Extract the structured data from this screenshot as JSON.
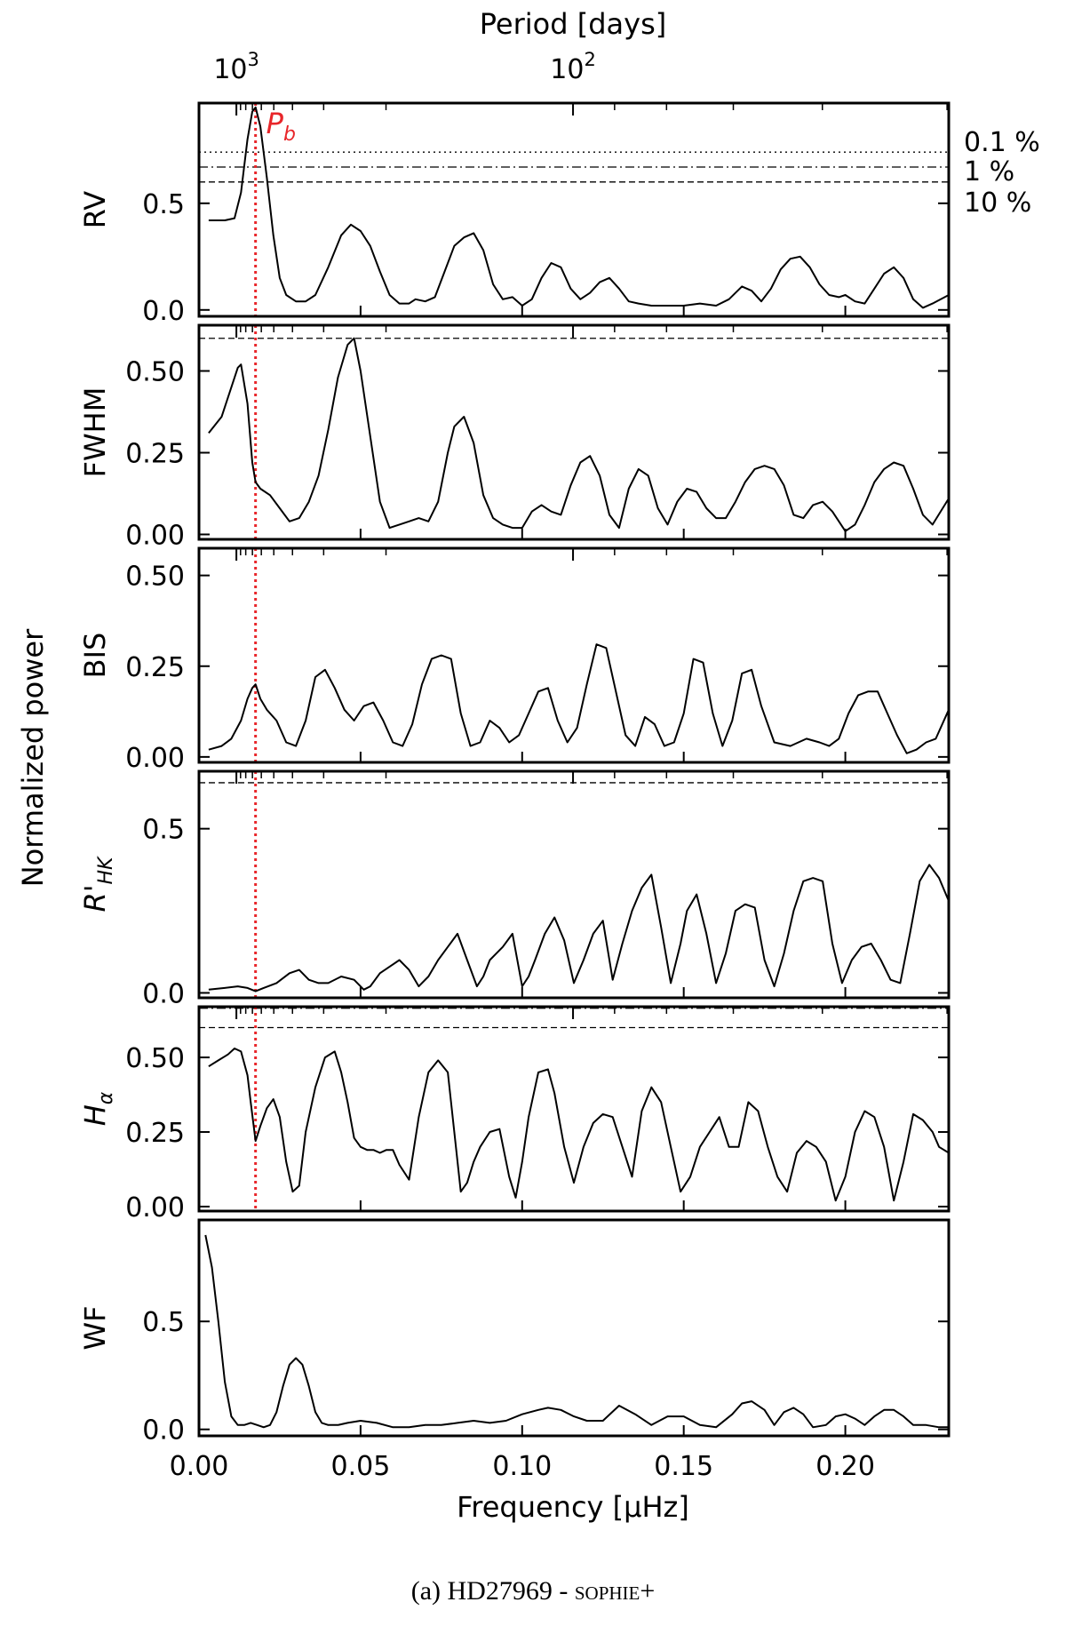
{
  "figure": {
    "top_axis_label": "Period [days]",
    "top_ticks": [
      {
        "label": "10",
        "exp": "3",
        "period": 1000
      },
      {
        "label": "10",
        "exp": "2",
        "period": 100
      }
    ],
    "x_axis_label": "Frequency [μHz]",
    "y_axis_label": "Normalized power",
    "x_ticks": [
      "0.00",
      "0.05",
      "0.10",
      "0.15",
      "0.20"
    ],
    "planet_marker": {
      "label": "P",
      "subscript": "b",
      "frequency": 0.0175,
      "color": "#e8262a"
    },
    "fap_levels": [
      {
        "label": "0.1 %",
        "style": "dotted"
      },
      {
        "label": "1 %",
        "style": "dashdot"
      },
      {
        "label": "10 %",
        "style": "dashed"
      }
    ]
  },
  "caption": {
    "prefix": "(a) HD27969 - ",
    "instrument": "sophie+"
  },
  "chart_data": [
    {
      "type": "line",
      "name": "RV",
      "xlim": [
        0.0,
        0.232
      ],
      "ylim": [
        -0.03,
        0.97
      ],
      "yticks": [
        "0.0",
        "0.5"
      ],
      "ytick_values": [
        0.0,
        0.5
      ],
      "fap": [
        {
          "y": 0.74,
          "style": "dotted"
        },
        {
          "y": 0.67,
          "style": "dashdot"
        },
        {
          "y": 0.6,
          "style": "dashed"
        }
      ],
      "x": [
        0.003,
        0.008,
        0.011,
        0.013,
        0.015,
        0.0165,
        0.0175,
        0.019,
        0.021,
        0.023,
        0.025,
        0.027,
        0.03,
        0.033,
        0.036,
        0.04,
        0.044,
        0.047,
        0.05,
        0.053,
        0.056,
        0.059,
        0.062,
        0.065,
        0.067,
        0.07,
        0.073,
        0.076,
        0.079,
        0.082,
        0.085,
        0.088,
        0.091,
        0.094,
        0.097,
        0.1,
        0.103,
        0.106,
        0.109,
        0.112,
        0.115,
        0.118,
        0.121,
        0.124,
        0.127,
        0.13,
        0.133,
        0.136,
        0.14,
        0.145,
        0.15,
        0.155,
        0.16,
        0.164,
        0.168,
        0.171,
        0.174,
        0.177,
        0.18,
        0.183,
        0.186,
        0.189,
        0.192,
        0.195,
        0.198,
        0.2,
        0.203,
        0.206,
        0.209,
        0.212,
        0.215,
        0.218,
        0.221,
        0.224,
        0.227,
        0.232
      ],
      "y": [
        0.42,
        0.42,
        0.43,
        0.55,
        0.8,
        0.93,
        0.95,
        0.86,
        0.62,
        0.35,
        0.15,
        0.07,
        0.04,
        0.04,
        0.07,
        0.2,
        0.35,
        0.4,
        0.37,
        0.3,
        0.18,
        0.07,
        0.03,
        0.03,
        0.05,
        0.04,
        0.06,
        0.18,
        0.3,
        0.34,
        0.36,
        0.28,
        0.12,
        0.05,
        0.06,
        0.02,
        0.05,
        0.15,
        0.22,
        0.2,
        0.1,
        0.05,
        0.08,
        0.13,
        0.15,
        0.1,
        0.04,
        0.03,
        0.02,
        0.02,
        0.02,
        0.03,
        0.02,
        0.05,
        0.11,
        0.09,
        0.04,
        0.1,
        0.19,
        0.24,
        0.25,
        0.2,
        0.12,
        0.07,
        0.06,
        0.07,
        0.04,
        0.03,
        0.1,
        0.17,
        0.2,
        0.15,
        0.05,
        0.01,
        0.03,
        0.07
      ]
    },
    {
      "type": "line",
      "name": "FWHM",
      "xlim": [
        0.0,
        0.232
      ],
      "ylim": [
        -0.015,
        0.64
      ],
      "yticks": [
        "0.00",
        "0.25",
        "0.50"
      ],
      "ytick_values": [
        0.0,
        0.25,
        0.5
      ],
      "fap": [
        {
          "y": 0.6,
          "style": "dashed"
        }
      ],
      "x": [
        0.003,
        0.007,
        0.01,
        0.012,
        0.013,
        0.015,
        0.0165,
        0.0175,
        0.019,
        0.022,
        0.025,
        0.028,
        0.031,
        0.034,
        0.037,
        0.04,
        0.043,
        0.046,
        0.048,
        0.05,
        0.053,
        0.056,
        0.059,
        0.062,
        0.065,
        0.068,
        0.071,
        0.074,
        0.077,
        0.079,
        0.082,
        0.085,
        0.088,
        0.091,
        0.094,
        0.097,
        0.1,
        0.103,
        0.106,
        0.109,
        0.112,
        0.115,
        0.118,
        0.121,
        0.124,
        0.127,
        0.13,
        0.133,
        0.136,
        0.139,
        0.142,
        0.145,
        0.148,
        0.151,
        0.154,
        0.157,
        0.16,
        0.163,
        0.166,
        0.169,
        0.172,
        0.175,
        0.178,
        0.181,
        0.184,
        0.187,
        0.19,
        0.193,
        0.196,
        0.2,
        0.203,
        0.206,
        0.209,
        0.212,
        0.215,
        0.218,
        0.221,
        0.224,
        0.227,
        0.232
      ],
      "y": [
        0.31,
        0.36,
        0.45,
        0.51,
        0.52,
        0.4,
        0.22,
        0.16,
        0.14,
        0.12,
        0.08,
        0.04,
        0.05,
        0.1,
        0.18,
        0.32,
        0.48,
        0.58,
        0.6,
        0.5,
        0.3,
        0.1,
        0.02,
        0.03,
        0.04,
        0.05,
        0.04,
        0.1,
        0.25,
        0.33,
        0.36,
        0.28,
        0.12,
        0.05,
        0.03,
        0.02,
        0.02,
        0.07,
        0.09,
        0.07,
        0.06,
        0.15,
        0.22,
        0.24,
        0.18,
        0.06,
        0.02,
        0.14,
        0.2,
        0.18,
        0.08,
        0.03,
        0.1,
        0.14,
        0.13,
        0.08,
        0.05,
        0.05,
        0.1,
        0.16,
        0.2,
        0.21,
        0.2,
        0.15,
        0.06,
        0.05,
        0.09,
        0.1,
        0.07,
        0.01,
        0.03,
        0.09,
        0.16,
        0.2,
        0.22,
        0.21,
        0.14,
        0.06,
        0.03,
        0.11
      ]
    },
    {
      "type": "line",
      "name": "BIS",
      "xlim": [
        0.0,
        0.232
      ],
      "ylim": [
        -0.015,
        0.575
      ],
      "yticks": [
        "0.00",
        "0.25",
        "0.50"
      ],
      "ytick_values": [
        0.0,
        0.25,
        0.5
      ],
      "fap": [],
      "x": [
        0.003,
        0.007,
        0.01,
        0.013,
        0.015,
        0.0165,
        0.0175,
        0.019,
        0.021,
        0.024,
        0.027,
        0.03,
        0.033,
        0.036,
        0.039,
        0.042,
        0.045,
        0.048,
        0.051,
        0.054,
        0.057,
        0.06,
        0.063,
        0.066,
        0.069,
        0.072,
        0.075,
        0.078,
        0.081,
        0.084,
        0.087,
        0.09,
        0.093,
        0.096,
        0.099,
        0.102,
        0.105,
        0.108,
        0.111,
        0.114,
        0.117,
        0.12,
        0.123,
        0.126,
        0.129,
        0.132,
        0.135,
        0.138,
        0.141,
        0.144,
        0.147,
        0.15,
        0.153,
        0.156,
        0.159,
        0.162,
        0.165,
        0.168,
        0.171,
        0.174,
        0.178,
        0.183,
        0.188,
        0.192,
        0.195,
        0.198,
        0.201,
        0.204,
        0.207,
        0.21,
        0.213,
        0.216,
        0.219,
        0.222,
        0.225,
        0.228,
        0.232
      ],
      "y": [
        0.02,
        0.03,
        0.05,
        0.1,
        0.16,
        0.19,
        0.2,
        0.16,
        0.13,
        0.1,
        0.04,
        0.03,
        0.1,
        0.22,
        0.24,
        0.19,
        0.13,
        0.1,
        0.14,
        0.15,
        0.1,
        0.04,
        0.03,
        0.09,
        0.2,
        0.27,
        0.28,
        0.27,
        0.12,
        0.03,
        0.04,
        0.1,
        0.08,
        0.04,
        0.06,
        0.12,
        0.18,
        0.19,
        0.1,
        0.04,
        0.08,
        0.2,
        0.31,
        0.3,
        0.18,
        0.06,
        0.03,
        0.11,
        0.09,
        0.03,
        0.04,
        0.12,
        0.27,
        0.26,
        0.12,
        0.03,
        0.1,
        0.23,
        0.24,
        0.14,
        0.04,
        0.03,
        0.05,
        0.04,
        0.03,
        0.05,
        0.12,
        0.17,
        0.18,
        0.18,
        0.12,
        0.06,
        0.01,
        0.02,
        0.04,
        0.05,
        0.13
      ]
    },
    {
      "type": "line",
      "name": "R'HK",
      "xlim": [
        0.0,
        0.232
      ],
      "ylim": [
        -0.015,
        0.675
      ],
      "yticks": [
        "0.0",
        "0.5"
      ],
      "ytick_values": [
        0.0,
        0.5
      ],
      "fap": [
        {
          "y": 0.64,
          "style": "dashed"
        }
      ],
      "x": [
        0.003,
        0.008,
        0.012,
        0.015,
        0.0175,
        0.02,
        0.024,
        0.028,
        0.031,
        0.034,
        0.037,
        0.04,
        0.044,
        0.048,
        0.051,
        0.053,
        0.056,
        0.059,
        0.062,
        0.065,
        0.068,
        0.071,
        0.074,
        0.077,
        0.08,
        0.083,
        0.086,
        0.088,
        0.09,
        0.092,
        0.094,
        0.097,
        0.1,
        0.102,
        0.104,
        0.107,
        0.11,
        0.113,
        0.116,
        0.119,
        0.122,
        0.125,
        0.128,
        0.131,
        0.134,
        0.137,
        0.14,
        0.143,
        0.146,
        0.149,
        0.151,
        0.154,
        0.157,
        0.16,
        0.163,
        0.166,
        0.169,
        0.172,
        0.175,
        0.178,
        0.181,
        0.184,
        0.187,
        0.19,
        0.193,
        0.196,
        0.199,
        0.202,
        0.205,
        0.208,
        0.211,
        0.214,
        0.217,
        0.22,
        0.223,
        0.226,
        0.229,
        0.232
      ],
      "y": [
        0.01,
        0.015,
        0.02,
        0.015,
        0.005,
        0.015,
        0.03,
        0.06,
        0.07,
        0.04,
        0.03,
        0.03,
        0.05,
        0.04,
        0.01,
        0.02,
        0.06,
        0.08,
        0.1,
        0.07,
        0.02,
        0.05,
        0.1,
        0.14,
        0.18,
        0.1,
        0.02,
        0.05,
        0.1,
        0.12,
        0.14,
        0.18,
        0.02,
        0.05,
        0.1,
        0.18,
        0.23,
        0.16,
        0.03,
        0.1,
        0.18,
        0.22,
        0.04,
        0.15,
        0.25,
        0.32,
        0.36,
        0.2,
        0.03,
        0.15,
        0.25,
        0.3,
        0.18,
        0.03,
        0.12,
        0.25,
        0.27,
        0.26,
        0.1,
        0.02,
        0.12,
        0.25,
        0.34,
        0.35,
        0.34,
        0.15,
        0.03,
        0.1,
        0.14,
        0.15,
        0.1,
        0.04,
        0.03,
        0.18,
        0.34,
        0.39,
        0.35,
        0.28
      ]
    },
    {
      "type": "line",
      "name": "Hα",
      "xlim": [
        0.0,
        0.232
      ],
      "ylim": [
        -0.015,
        0.67
      ],
      "yticks": [
        "0.00",
        "0.25",
        "0.50"
      ],
      "ytick_values": [
        0.0,
        0.25,
        0.5
      ],
      "fap": [
        {
          "y": 0.665,
          "style": "dashdot"
        },
        {
          "y": 0.6,
          "style": "dashed"
        }
      ],
      "x": [
        0.003,
        0.006,
        0.009,
        0.011,
        0.013,
        0.015,
        0.016,
        0.0175,
        0.019,
        0.021,
        0.023,
        0.025,
        0.027,
        0.029,
        0.031,
        0.033,
        0.036,
        0.039,
        0.042,
        0.044,
        0.046,
        0.048,
        0.05,
        0.052,
        0.054,
        0.056,
        0.058,
        0.06,
        0.062,
        0.065,
        0.068,
        0.071,
        0.074,
        0.077,
        0.079,
        0.081,
        0.083,
        0.085,
        0.087,
        0.09,
        0.093,
        0.096,
        0.098,
        0.1,
        0.102,
        0.105,
        0.108,
        0.11,
        0.113,
        0.116,
        0.119,
        0.122,
        0.125,
        0.128,
        0.131,
        0.134,
        0.137,
        0.14,
        0.143,
        0.146,
        0.149,
        0.152,
        0.155,
        0.158,
        0.161,
        0.164,
        0.167,
        0.17,
        0.173,
        0.176,
        0.179,
        0.182,
        0.185,
        0.188,
        0.191,
        0.194,
        0.197,
        0.2,
        0.203,
        0.206,
        0.209,
        0.212,
        0.215,
        0.218,
        0.221,
        0.224,
        0.227,
        0.229,
        0.232
      ],
      "y": [
        0.47,
        0.49,
        0.51,
        0.53,
        0.52,
        0.44,
        0.35,
        0.22,
        0.27,
        0.33,
        0.36,
        0.3,
        0.15,
        0.05,
        0.07,
        0.25,
        0.4,
        0.5,
        0.52,
        0.45,
        0.35,
        0.23,
        0.2,
        0.19,
        0.19,
        0.18,
        0.19,
        0.19,
        0.14,
        0.09,
        0.3,
        0.45,
        0.49,
        0.45,
        0.25,
        0.05,
        0.08,
        0.15,
        0.2,
        0.25,
        0.26,
        0.1,
        0.03,
        0.15,
        0.3,
        0.45,
        0.46,
        0.38,
        0.2,
        0.08,
        0.2,
        0.28,
        0.31,
        0.3,
        0.2,
        0.1,
        0.32,
        0.4,
        0.35,
        0.2,
        0.05,
        0.1,
        0.2,
        0.25,
        0.3,
        0.2,
        0.2,
        0.35,
        0.32,
        0.2,
        0.1,
        0.05,
        0.18,
        0.22,
        0.2,
        0.15,
        0.02,
        0.1,
        0.25,
        0.32,
        0.3,
        0.2,
        0.02,
        0.15,
        0.31,
        0.29,
        0.25,
        0.2,
        0.18
      ]
    },
    {
      "type": "line",
      "name": "WF",
      "xlim": [
        0.0,
        0.232
      ],
      "ylim": [
        -0.03,
        0.97
      ],
      "yticks": [
        "0.0",
        "0.5"
      ],
      "ytick_values": [
        0.0,
        0.5
      ],
      "fap": [],
      "x": [
        0.002,
        0.004,
        0.006,
        0.008,
        0.01,
        0.012,
        0.014,
        0.016,
        0.018,
        0.02,
        0.022,
        0.024,
        0.026,
        0.028,
        0.03,
        0.032,
        0.034,
        0.036,
        0.038,
        0.04,
        0.043,
        0.046,
        0.05,
        0.055,
        0.06,
        0.065,
        0.07,
        0.075,
        0.08,
        0.085,
        0.09,
        0.095,
        0.1,
        0.105,
        0.108,
        0.112,
        0.116,
        0.12,
        0.125,
        0.13,
        0.135,
        0.14,
        0.145,
        0.15,
        0.155,
        0.16,
        0.165,
        0.168,
        0.171,
        0.175,
        0.178,
        0.181,
        0.184,
        0.187,
        0.19,
        0.194,
        0.197,
        0.2,
        0.203,
        0.206,
        0.209,
        0.212,
        0.215,
        0.218,
        0.221,
        0.225,
        0.229,
        0.232
      ],
      "y": [
        0.9,
        0.75,
        0.5,
        0.22,
        0.06,
        0.02,
        0.02,
        0.03,
        0.02,
        0.01,
        0.02,
        0.08,
        0.2,
        0.3,
        0.33,
        0.3,
        0.2,
        0.08,
        0.03,
        0.02,
        0.02,
        0.03,
        0.04,
        0.03,
        0.01,
        0.01,
        0.02,
        0.02,
        0.03,
        0.04,
        0.03,
        0.04,
        0.07,
        0.09,
        0.1,
        0.09,
        0.06,
        0.04,
        0.04,
        0.11,
        0.07,
        0.02,
        0.06,
        0.06,
        0.02,
        0.01,
        0.07,
        0.12,
        0.13,
        0.09,
        0.02,
        0.08,
        0.1,
        0.07,
        0.01,
        0.02,
        0.06,
        0.07,
        0.05,
        0.02,
        0.06,
        0.09,
        0.09,
        0.06,
        0.02,
        0.02,
        0.01,
        0.01
      ]
    }
  ]
}
